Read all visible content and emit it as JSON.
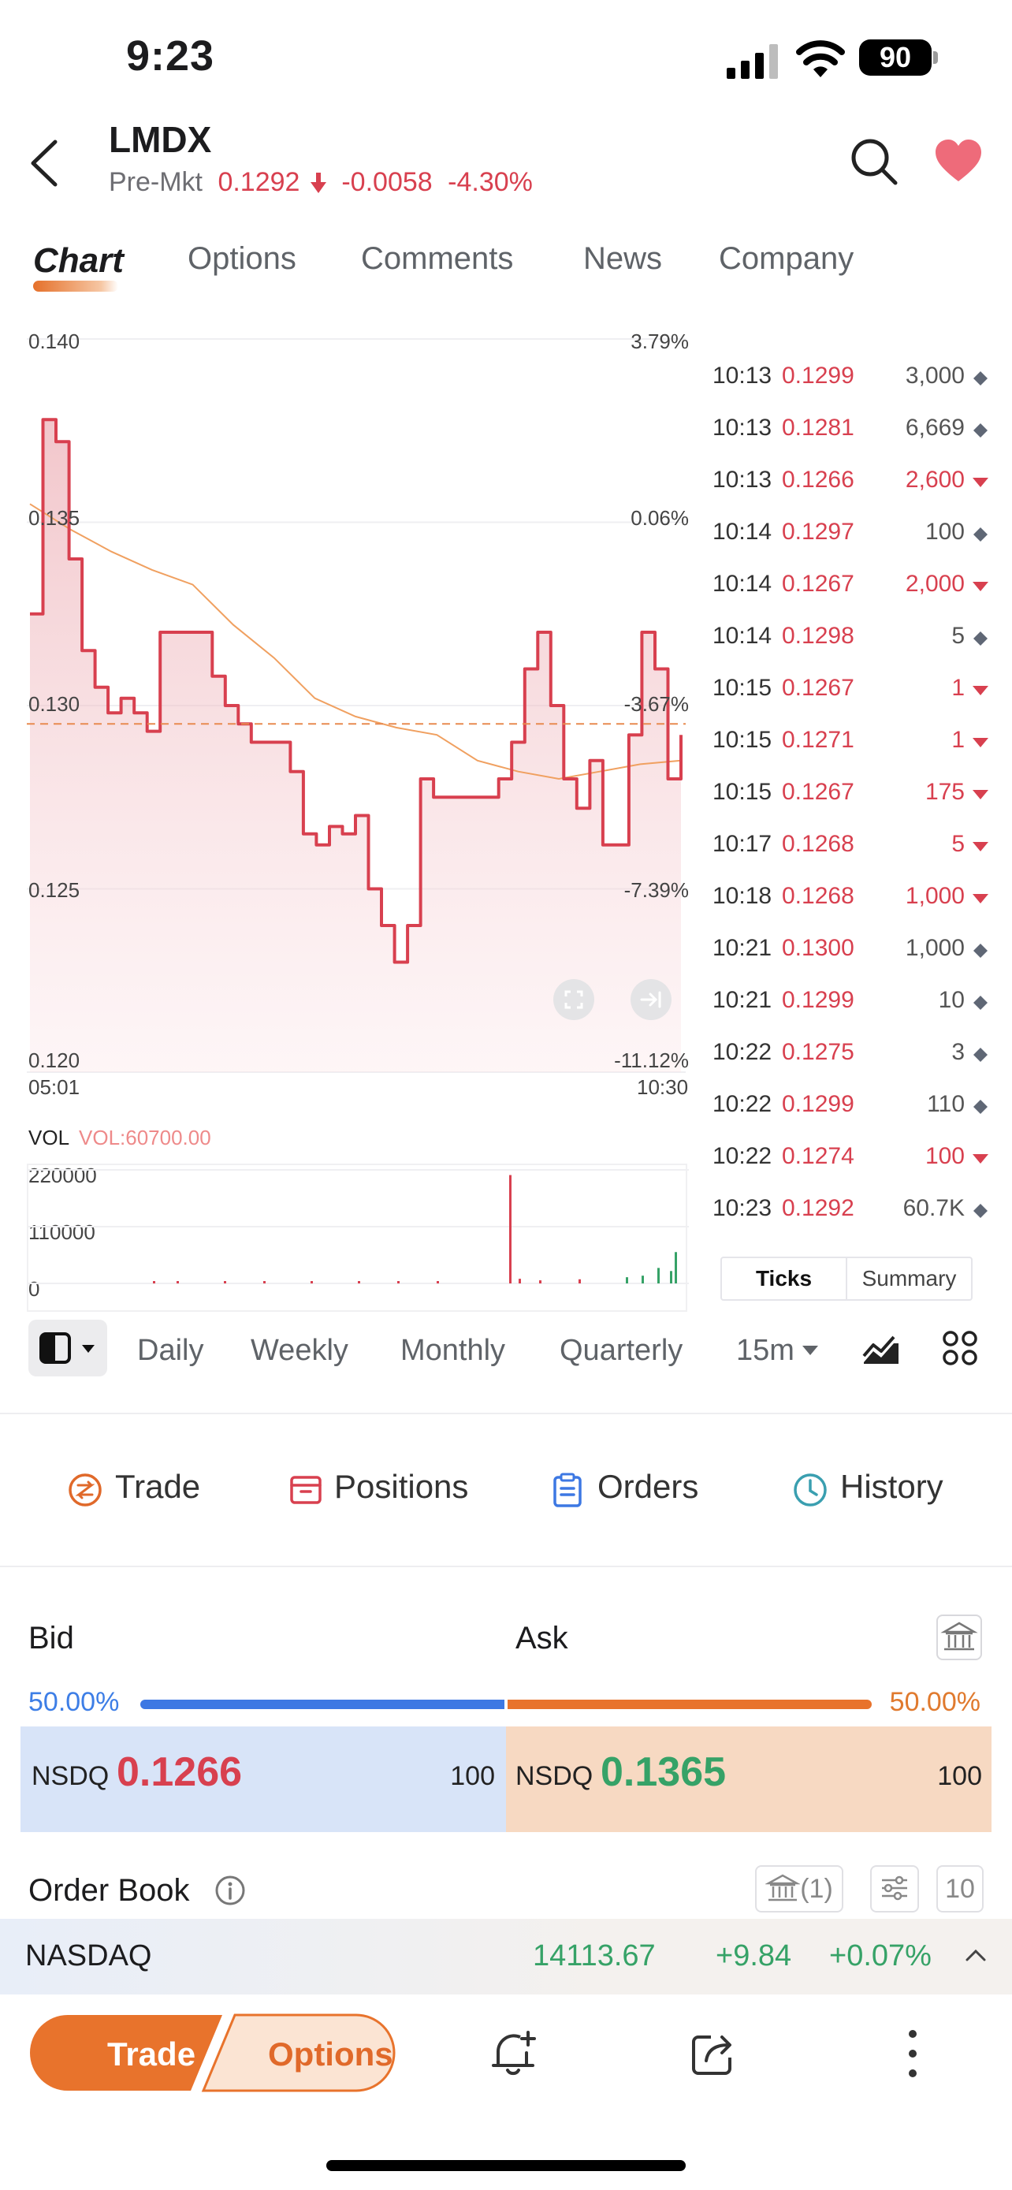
{
  "status": {
    "time": "9:23",
    "battery": "90"
  },
  "header": {
    "ticker": "LMDX",
    "premkt_label": "Pre-Mkt",
    "price": "0.1292",
    "change": "-0.0058",
    "change_pct": "-4.30%"
  },
  "tabs": [
    {
      "label": "Chart",
      "active": true
    },
    {
      "label": "Options"
    },
    {
      "label": "Comments"
    },
    {
      "label": "News"
    },
    {
      "label": "Company"
    }
  ],
  "chart": {
    "y_left": [
      "0.140",
      "0.135",
      "0.130",
      "0.125",
      "0.120"
    ],
    "y_right": [
      "3.79%",
      "0.06%",
      "-3.67%",
      "-7.39%",
      "-11.12%"
    ],
    "x_start": "05:01",
    "x_end": "10:30",
    "vol_label": "VOL",
    "vol_value": "VOL:60700.00",
    "vol_ticks": [
      "220000",
      "110000",
      "0"
    ],
    "line_color": "#d8404f",
    "avg_color": "#f0a060"
  },
  "chart_data": {
    "type": "line",
    "title": "",
    "xlabel": "",
    "ylabel": "",
    "x_range": [
      "05:01",
      "10:30"
    ],
    "ylim": [
      0.12,
      0.14
    ],
    "series": [
      {
        "values": [
          0.1325,
          0.1378,
          0.1372,
          0.134,
          0.1315,
          0.1305,
          0.1298,
          0.1302,
          0.1298,
          0.1293,
          0.132,
          0.132,
          0.132,
          0.132,
          0.1308,
          0.13,
          0.1295,
          0.129,
          0.129,
          0.129,
          0.1282,
          0.1265,
          0.1262,
          0.1267,
          0.1265,
          0.127,
          0.125,
          0.124,
          0.123,
          0.124,
          0.128,
          0.1275,
          0.1275,
          0.1275,
          0.1275,
          0.1275,
          0.128,
          0.129,
          0.131,
          0.132,
          0.13,
          0.128,
          0.1272,
          0.1285,
          0.1262,
          0.1262,
          0.1292,
          0.132,
          0.131,
          0.128,
          0.1292
        ]
      },
      {
        "values": [
          0.1355,
          0.1348,
          0.1342,
          0.1337,
          0.1333,
          0.1322,
          0.1313,
          0.1302,
          0.1297,
          0.1294,
          0.1292,
          0.1285,
          0.1282,
          0.128,
          0.1282,
          0.1284,
          0.1285
        ]
      }
    ],
    "volume": [
      300,
      200,
      400,
      250,
      180,
      220,
      350,
      300,
      210000,
      9000,
      6000,
      8000,
      12000,
      15000,
      30000,
      24000,
      60700
    ]
  },
  "ticks": [
    {
      "time": "10:13",
      "price": "0.1299",
      "vol": "3,000",
      "dir": "flat"
    },
    {
      "time": "10:13",
      "price": "0.1281",
      "vol": "6,669",
      "dir": "flat"
    },
    {
      "time": "10:13",
      "price": "0.1266",
      "vol": "2,600",
      "dir": "down"
    },
    {
      "time": "10:14",
      "price": "0.1297",
      "vol": "100",
      "dir": "flat"
    },
    {
      "time": "10:14",
      "price": "0.1267",
      "vol": "2,000",
      "dir": "down"
    },
    {
      "time": "10:14",
      "price": "0.1298",
      "vol": "5",
      "dir": "flat"
    },
    {
      "time": "10:15",
      "price": "0.1267",
      "vol": "1",
      "dir": "down"
    },
    {
      "time": "10:15",
      "price": "0.1271",
      "vol": "1",
      "dir": "down"
    },
    {
      "time": "10:15",
      "price": "0.1267",
      "vol": "175",
      "dir": "down"
    },
    {
      "time": "10:17",
      "price": "0.1268",
      "vol": "5",
      "dir": "down"
    },
    {
      "time": "10:18",
      "price": "0.1268",
      "vol": "1,000",
      "dir": "down"
    },
    {
      "time": "10:21",
      "price": "0.1300",
      "vol": "1,000",
      "dir": "flat"
    },
    {
      "time": "10:21",
      "price": "0.1299",
      "vol": "10",
      "dir": "flat"
    },
    {
      "time": "10:22",
      "price": "0.1275",
      "vol": "3",
      "dir": "flat"
    },
    {
      "time": "10:22",
      "price": "0.1299",
      "vol": "110",
      "dir": "flat"
    },
    {
      "time": "10:22",
      "price": "0.1274",
      "vol": "100",
      "dir": "down"
    },
    {
      "time": "10:23",
      "price": "0.1292",
      "vol": "60.7K",
      "dir": "flat"
    }
  ],
  "ticks_switch": {
    "ticks": "Ticks",
    "summary": "Summary"
  },
  "periods": [
    "Daily",
    "Weekly",
    "Monthly",
    "Quarterly",
    "15m"
  ],
  "actions": {
    "trade": "Trade",
    "positions": "Positions",
    "orders": "Orders",
    "history": "History"
  },
  "quote": {
    "bid_label": "Bid",
    "ask_label": "Ask",
    "bid_pct": "50.00%",
    "ask_pct": "50.00%",
    "bid_exchange": "NSDQ",
    "bid_price": "0.1266",
    "bid_size": "100",
    "ask_exchange": "NSDQ",
    "ask_price": "0.1365",
    "ask_size": "100"
  },
  "order_book": {
    "title": "Order Book",
    "bank_count": "(1)",
    "depth": "10"
  },
  "index": {
    "name": "NASDAQ",
    "value": "14113.67",
    "change": "+9.84",
    "change_pct": "+0.07%"
  },
  "bottom": {
    "trade": "Trade",
    "options": "Options"
  }
}
